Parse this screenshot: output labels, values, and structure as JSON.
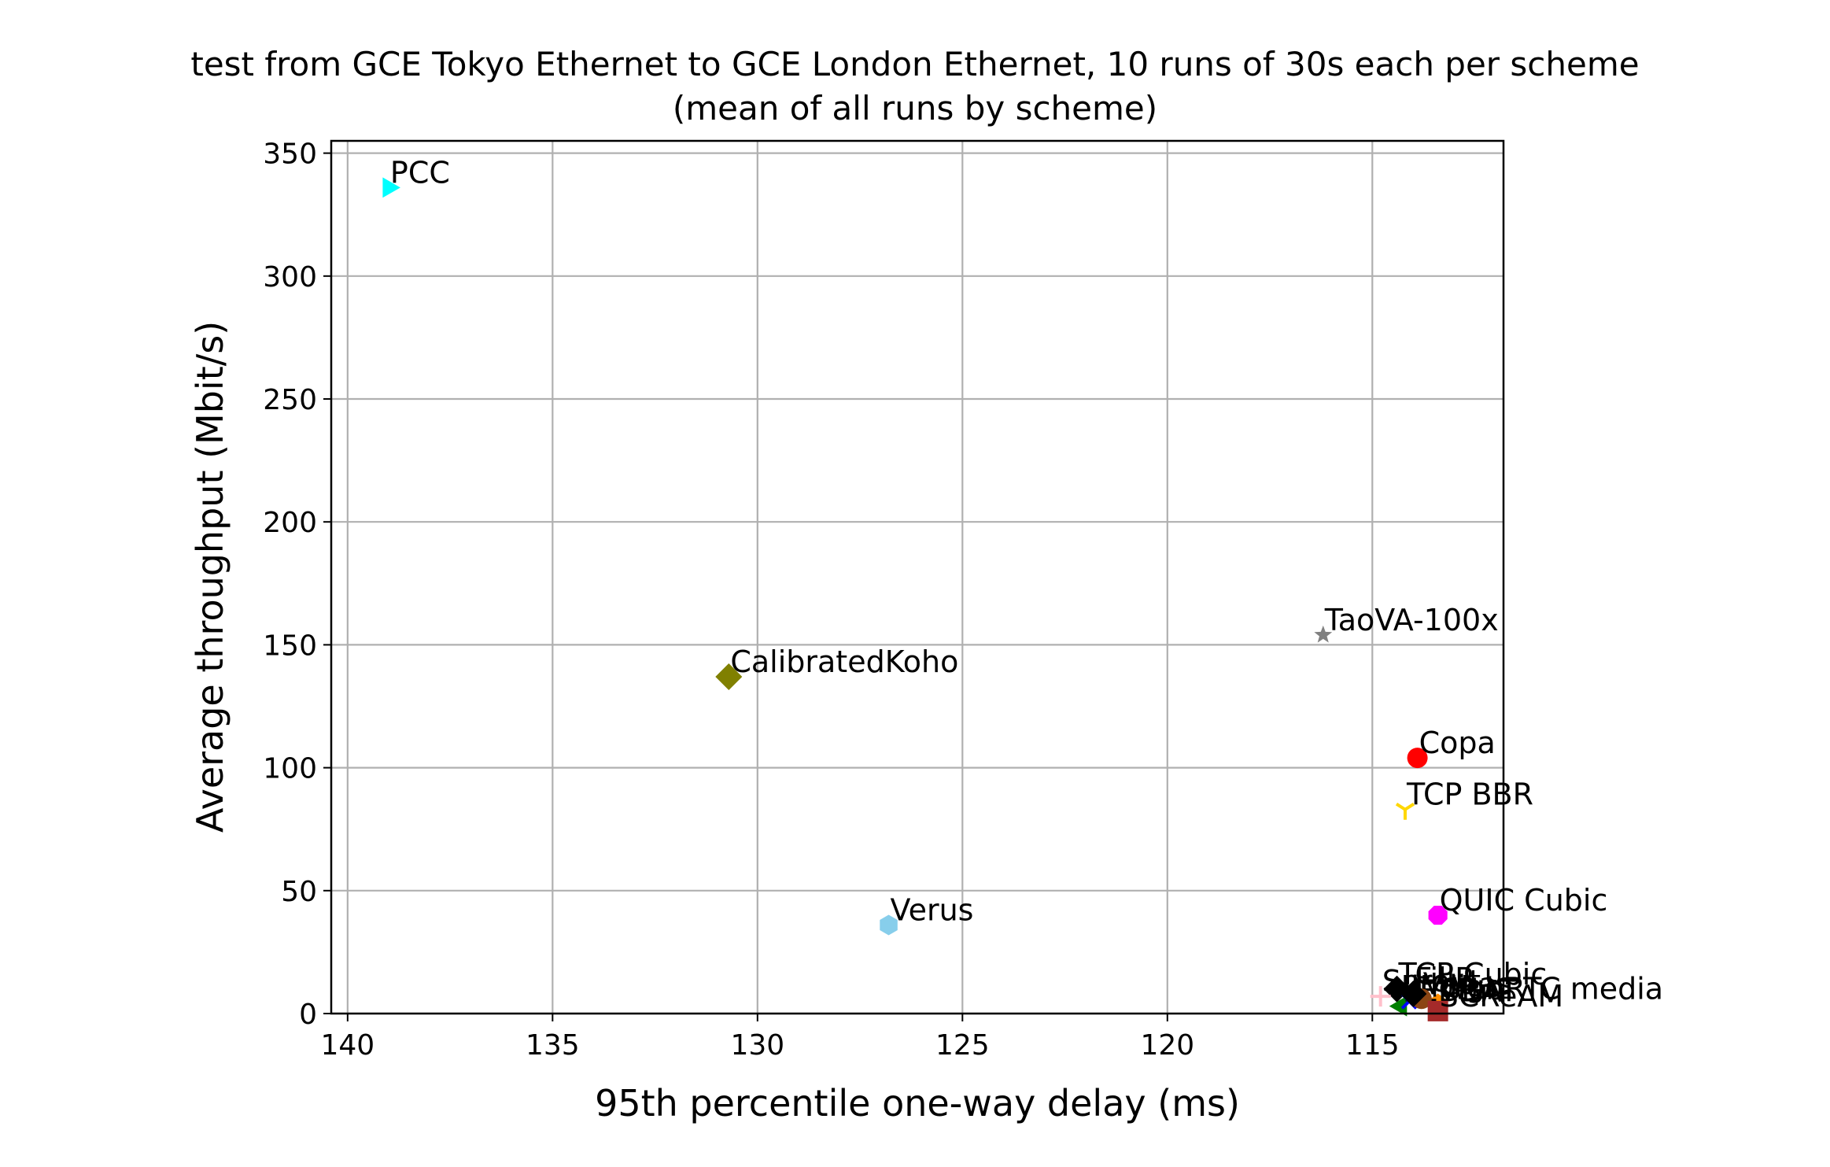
{
  "chart_data": {
    "type": "scatter",
    "title": "test from GCE Tokyo Ethernet to GCE London Ethernet, 10 runs of 30s each per scheme",
    "subtitle": "(mean of all runs by scheme)",
    "xlabel": "95th percentile one-way delay (ms)",
    "ylabel": "Average throughput (Mbit/s)",
    "xlim": [
      140.4,
      111.8
    ],
    "ylim": [
      0,
      355
    ],
    "x_inverted": true,
    "grid": true,
    "xticks": [
      140,
      135,
      130,
      125,
      120,
      115
    ],
    "yticks": [
      0,
      50,
      100,
      150,
      200,
      250,
      300,
      350
    ],
    "points": [
      {
        "label": "PCC",
        "x": 139.0,
        "y": 336,
        "marker": "triangle-right",
        "color": "#00ffff"
      },
      {
        "label": "CalibratedKoho",
        "x": 130.7,
        "y": 137,
        "marker": "diamond",
        "color": "#808000"
      },
      {
        "label": "TaoVA-100x",
        "x": 116.2,
        "y": 154,
        "marker": "star",
        "color": "#808080"
      },
      {
        "label": "Copa",
        "x": 113.9,
        "y": 104,
        "marker": "circle",
        "color": "#ff0000"
      },
      {
        "label": "TCP BBR",
        "x": 114.2,
        "y": 83,
        "marker": "tri-down",
        "color": "#ffd700"
      },
      {
        "label": "QUIC Cubic",
        "x": 113.4,
        "y": 40,
        "marker": "octagon",
        "color": "#ff00ff"
      },
      {
        "label": "Verus",
        "x": 126.8,
        "y": 36,
        "marker": "hexagon",
        "color": "#87ceeb"
      },
      {
        "label": "TCP Cubic",
        "x": 114.4,
        "y": 10,
        "marker": "diamond",
        "color": "#000000"
      },
      {
        "label": "Sprout",
        "x": 114.8,
        "y": 7,
        "marker": "plus",
        "color": "#ffc0cb"
      },
      {
        "label": "WebRTC media",
        "x": 113.4,
        "y": 4,
        "marker": "pentagon",
        "color": "#ff8c00"
      },
      {
        "label": "LEDBAT",
        "x": 114.3,
        "y": 3,
        "marker": "triangle-left",
        "color": "#008000"
      },
      {
        "label": "Indigo",
        "x": 114.1,
        "y": 5,
        "marker": "x",
        "color": "#0000ff"
      },
      {
        "label": "Vegas",
        "x": 113.8,
        "y": 6,
        "marker": "circle",
        "color": "#8b4513"
      },
      {
        "label": "FillP",
        "x": 114.0,
        "y": 8,
        "marker": "diamond",
        "color": "#000000"
      },
      {
        "label": "SCReAM",
        "x": 113.4,
        "y": 1,
        "marker": "square",
        "color": "#a52a2a"
      }
    ]
  }
}
